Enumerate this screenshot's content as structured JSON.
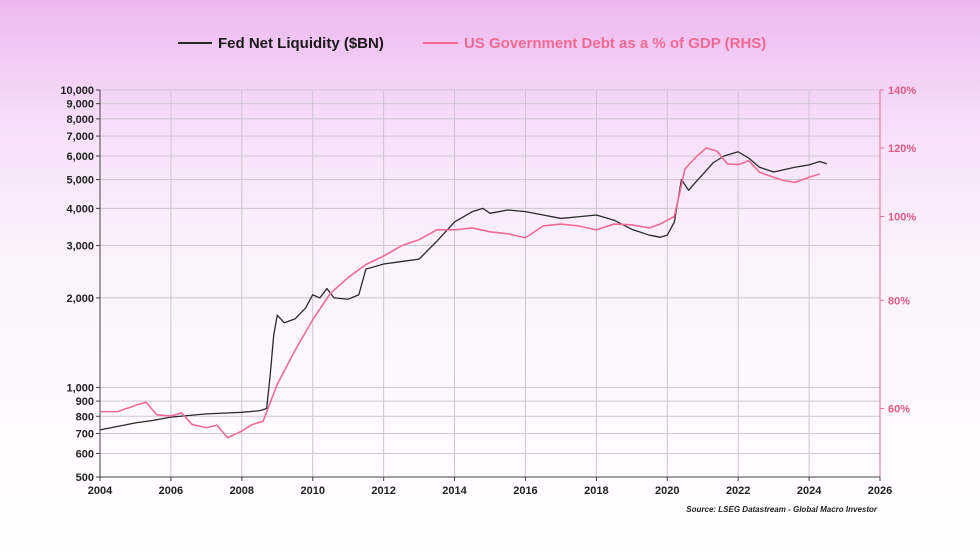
{
  "colors": {
    "liquidity": "#2a2a2a",
    "debt": "#f06b94",
    "grid": "#cfc4d2",
    "axis": "#444444",
    "right_axis": "#f06b94"
  },
  "chart_data": {
    "type": "line",
    "legend_position": "top-center",
    "grid": true,
    "source": "Source: LSEG Datastream - Global Macro Investor",
    "x_axis": {
      "min": 2004,
      "max": 2026,
      "ticks": [
        2004,
        2006,
        2008,
        2010,
        2012,
        2014,
        2016,
        2018,
        2020,
        2022,
        2024,
        2026
      ],
      "tick_labels": [
        "2004",
        "2006",
        "2008",
        "2010",
        "2012",
        "2014",
        "2016",
        "2018",
        "2020",
        "2022",
        "2024",
        "2026"
      ]
    },
    "y_left": {
      "scale": "log",
      "min": 500,
      "max": 10000,
      "ticks": [
        500,
        600,
        700,
        800,
        900,
        1000,
        2000,
        3000,
        4000,
        5000,
        6000,
        7000,
        8000,
        9000,
        10000
      ],
      "tick_labels": [
        "500",
        "600",
        "700",
        "800",
        "900",
        "1,000",
        "2,000",
        "3,000",
        "4,000",
        "5,000",
        "6,000",
        "7,000",
        "8,000",
        "9,000",
        "10,000"
      ]
    },
    "y_right": {
      "scale": "log",
      "min": 50,
      "max": 140,
      "ticks": [
        60,
        80,
        100,
        120,
        140
      ],
      "tick_labels": [
        "60%",
        "80%",
        "100%",
        "120%",
        "140%"
      ]
    },
    "series": [
      {
        "name": "Fed Net Liquidity ($BN)",
        "axis": "left",
        "color": "#2a2a2a",
        "points": [
          [
            2004.0,
            720
          ],
          [
            2004.5,
            740
          ],
          [
            2005.0,
            760
          ],
          [
            2005.5,
            775
          ],
          [
            2006.0,
            795
          ],
          [
            2006.5,
            805
          ],
          [
            2007.0,
            815
          ],
          [
            2007.5,
            820
          ],
          [
            2008.0,
            825
          ],
          [
            2008.5,
            835
          ],
          [
            2008.7,
            850
          ],
          [
            2008.8,
            1100
          ],
          [
            2008.9,
            1500
          ],
          [
            2009.0,
            1750
          ],
          [
            2009.2,
            1650
          ],
          [
            2009.5,
            1700
          ],
          [
            2009.8,
            1850
          ],
          [
            2010.0,
            2050
          ],
          [
            2010.2,
            2000
          ],
          [
            2010.4,
            2150
          ],
          [
            2010.6,
            2000
          ],
          [
            2011.0,
            1980
          ],
          [
            2011.3,
            2050
          ],
          [
            2011.5,
            2500
          ],
          [
            2012.0,
            2600
          ],
          [
            2012.5,
            2650
          ],
          [
            2013.0,
            2700
          ],
          [
            2013.5,
            3100
          ],
          [
            2014.0,
            3600
          ],
          [
            2014.5,
            3900
          ],
          [
            2014.8,
            4000
          ],
          [
            2015.0,
            3850
          ],
          [
            2015.5,
            3950
          ],
          [
            2016.0,
            3900
          ],
          [
            2016.5,
            3800
          ],
          [
            2017.0,
            3700
          ],
          [
            2017.5,
            3750
          ],
          [
            2018.0,
            3800
          ],
          [
            2018.5,
            3650
          ],
          [
            2019.0,
            3400
          ],
          [
            2019.5,
            3250
          ],
          [
            2019.8,
            3200
          ],
          [
            2020.0,
            3250
          ],
          [
            2020.2,
            3600
          ],
          [
            2020.4,
            5000
          ],
          [
            2020.6,
            4600
          ],
          [
            2020.8,
            4900
          ],
          [
            2021.0,
            5200
          ],
          [
            2021.3,
            5700
          ],
          [
            2021.6,
            6000
          ],
          [
            2022.0,
            6200
          ],
          [
            2022.3,
            5900
          ],
          [
            2022.6,
            5500
          ],
          [
            2023.0,
            5300
          ],
          [
            2023.3,
            5400
          ],
          [
            2023.6,
            5500
          ],
          [
            2024.0,
            5600
          ],
          [
            2024.3,
            5750
          ],
          [
            2024.5,
            5650
          ]
        ]
      },
      {
        "name": "US Government Debt as a % of GDP (RHS)",
        "axis": "right",
        "color": "#f06b94",
        "points": [
          [
            2004.0,
            59.5
          ],
          [
            2004.5,
            59.5
          ],
          [
            2005.0,
            60.5
          ],
          [
            2005.3,
            61.0
          ],
          [
            2005.6,
            59.0
          ],
          [
            2006.0,
            58.8
          ],
          [
            2006.3,
            59.3
          ],
          [
            2006.6,
            57.5
          ],
          [
            2007.0,
            57.0
          ],
          [
            2007.3,
            57.4
          ],
          [
            2007.6,
            55.5
          ],
          [
            2008.0,
            56.5
          ],
          [
            2008.3,
            57.5
          ],
          [
            2008.6,
            58.0
          ],
          [
            2009.0,
            64.0
          ],
          [
            2009.5,
            70.0
          ],
          [
            2010.0,
            76.0
          ],
          [
            2010.5,
            81.5
          ],
          [
            2011.0,
            85.0
          ],
          [
            2011.5,
            88.0
          ],
          [
            2012.0,
            90.0
          ],
          [
            2012.5,
            92.5
          ],
          [
            2013.0,
            94.0
          ],
          [
            2013.5,
            96.5
          ],
          [
            2014.0,
            96.5
          ],
          [
            2014.5,
            97.0
          ],
          [
            2015.0,
            96.0
          ],
          [
            2015.5,
            95.5
          ],
          [
            2016.0,
            94.5
          ],
          [
            2016.5,
            97.5
          ],
          [
            2017.0,
            98.0
          ],
          [
            2017.5,
            97.5
          ],
          [
            2018.0,
            96.5
          ],
          [
            2018.5,
            98.0
          ],
          [
            2019.0,
            97.8
          ],
          [
            2019.5,
            97.0
          ],
          [
            2019.8,
            98.0
          ],
          [
            2020.2,
            100.0
          ],
          [
            2020.5,
            113.5
          ],
          [
            2020.8,
            117.0
          ],
          [
            2021.1,
            120.0
          ],
          [
            2021.4,
            119.0
          ],
          [
            2021.7,
            115.0
          ],
          [
            2022.0,
            114.8
          ],
          [
            2022.3,
            116.0
          ],
          [
            2022.6,
            112.5
          ],
          [
            2023.0,
            111.0
          ],
          [
            2023.3,
            110.0
          ],
          [
            2023.6,
            109.5
          ],
          [
            2024.0,
            111.0
          ],
          [
            2024.3,
            112.0
          ]
        ]
      }
    ]
  }
}
